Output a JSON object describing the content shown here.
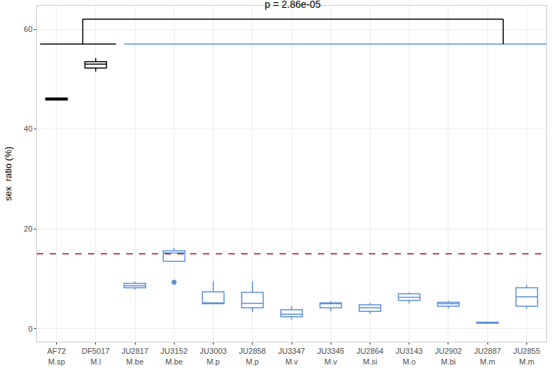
{
  "chart_data": {
    "type": "box",
    "y_label": "sex  ratio (%)",
    "categories": [
      "AF72\nM.sp",
      "DF5017\nM.l",
      "JU2817\nM.be",
      "JU3152\nM.be",
      "JU3003\nM.p",
      "JU2858\nM.p",
      "JU3347\nM.v",
      "JU3345\nM.v",
      "JU2864\nM.si",
      "JU3143\nM.o",
      "JU2902\nM.bi",
      "JU2887\nM.m",
      "JU2855\nM.m"
    ],
    "boxes": [
      {
        "lowerfence": 45.7,
        "q1": 45.8,
        "median": 46.0,
        "q3": 46.2,
        "upperfence": 46.3,
        "outliers": []
      },
      {
        "lowerfence": 51.5,
        "q1": 52.2,
        "median": 53.0,
        "q3": 53.5,
        "upperfence": 54.2,
        "outliers": []
      },
      {
        "lowerfence": 7.9,
        "q1": 8.2,
        "median": 8.6,
        "q3": 9.1,
        "upperfence": 9.5,
        "outliers": []
      },
      {
        "lowerfence": 13.5,
        "q1": 13.5,
        "median": 15.2,
        "q3": 15.6,
        "upperfence": 16.2,
        "outliers": [
          9.3
        ]
      },
      {
        "lowerfence": 4.9,
        "q1": 5.0,
        "median": 5.2,
        "q3": 7.4,
        "upperfence": 9.6,
        "outliers": []
      },
      {
        "lowerfence": 3.3,
        "q1": 4.2,
        "median": 5.1,
        "q3": 7.3,
        "upperfence": 9.5,
        "outliers": []
      },
      {
        "lowerfence": 1.8,
        "q1": 2.4,
        "median": 2.9,
        "q3": 3.8,
        "upperfence": 4.5,
        "outliers": []
      },
      {
        "lowerfence": 3.5,
        "q1": 4.2,
        "median": 5.0,
        "q3": 5.2,
        "upperfence": 5.5,
        "outliers": []
      },
      {
        "lowerfence": 3.0,
        "q1": 3.5,
        "median": 4.2,
        "q3": 4.8,
        "upperfence": 5.2,
        "outliers": []
      },
      {
        "lowerfence": 5.0,
        "q1": 5.7,
        "median": 6.3,
        "q3": 7.0,
        "upperfence": 7.3,
        "outliers": []
      },
      {
        "lowerfence": 4.1,
        "q1": 4.5,
        "median": 5.0,
        "q3": 5.3,
        "upperfence": 5.6,
        "outliers": []
      },
      {
        "lowerfence": 1.0,
        "q1": 1.1,
        "median": 1.2,
        "q3": 1.3,
        "upperfence": 1.4,
        "outliers": []
      },
      {
        "lowerfence": 4.0,
        "q1": 4.5,
        "median": 6.4,
        "q3": 8.2,
        "upperfence": 8.8,
        "outliers": []
      }
    ],
    "colors": [
      "#000000",
      "#000000",
      "#5b8fd9",
      "#5b8fd9",
      "#5b8fd9",
      "#5b8fd9",
      "#5b8fd9",
      "#5b8fd9",
      "#5b8fd9",
      "#5b8fd9",
      "#5b8fd9",
      "#5b8fd9",
      "#5b8fd9"
    ],
    "group_lines": [
      {
        "from": -0.42,
        "to": 1.52,
        "y": 57,
        "color": "#000000"
      },
      {
        "from": 1.73,
        "to": 12.56,
        "y": 57,
        "color": "#5b8fd9"
      }
    ],
    "bracket": {
      "from": 0.67,
      "to": 11.4,
      "y_low": 57,
      "y_high": 62,
      "label": "p = 2.86e-05",
      "label_y": 63.6
    },
    "reference_line": {
      "y": 15,
      "color": "#a50f15",
      "line_style": "dash"
    },
    "ylim": [
      -2.6,
      64.7
    ],
    "yticks": [
      0,
      20,
      40,
      60
    ],
    "grid": true
  }
}
